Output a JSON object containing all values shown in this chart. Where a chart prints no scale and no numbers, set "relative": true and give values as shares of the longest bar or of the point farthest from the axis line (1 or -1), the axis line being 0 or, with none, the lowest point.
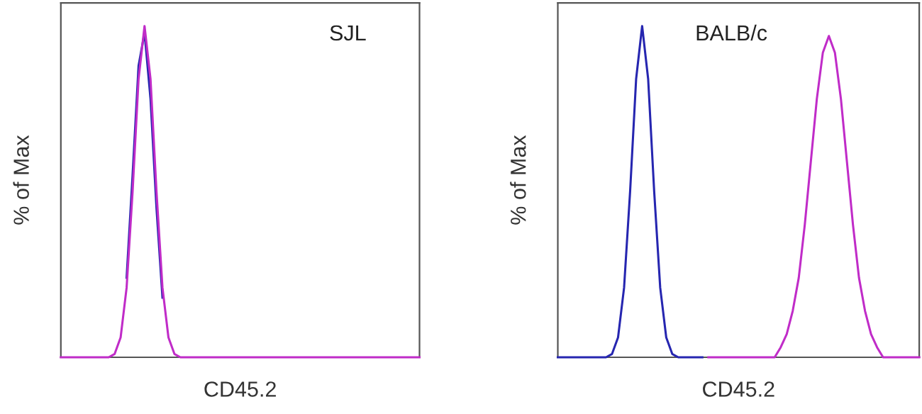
{
  "chart_data": [
    {
      "type": "line",
      "relative": true,
      "ylabel": "% of Max",
      "xlabel": "CD45.2",
      "annotations": [
        "SJL"
      ],
      "tick_labels": false,
      "line_style": "solid",
      "categories": [
        null,
        null,
        null,
        null,
        null,
        null,
        null,
        null,
        null,
        null,
        null,
        null,
        null,
        null,
        null,
        null,
        null,
        null,
        null,
        null,
        null,
        null,
        null,
        null,
        null,
        null,
        null,
        null,
        null,
        null,
        null,
        null,
        null,
        null,
        null,
        null,
        null,
        null,
        null,
        null,
        null,
        null,
        null,
        null,
        null,
        null,
        null,
        null,
        null,
        null,
        null,
        null,
        null,
        null,
        null,
        null,
        null,
        null,
        null,
        null,
        null
      ],
      "series": [
        {
          "color": "#2626b0",
          "values": [
            null,
            null,
            null,
            null,
            null,
            null,
            null,
            null,
            null,
            null,
            null,
            0.24,
            0.55,
            0.88,
            0.98,
            0.78,
            0.45,
            0.18,
            null,
            null,
            null,
            null,
            null,
            null,
            null,
            null,
            null,
            null,
            null,
            null,
            null,
            null,
            null,
            null,
            null,
            null,
            null,
            null,
            null,
            null,
            null,
            null,
            null,
            null,
            null,
            null,
            null,
            null,
            null,
            null,
            null,
            null,
            null,
            null,
            null,
            null,
            null,
            null,
            null,
            null,
            null
          ]
        },
        {
          "color": "#c02cc8",
          "values": [
            0,
            0,
            0,
            0,
            0,
            0,
            0,
            0,
            0,
            0.01,
            0.06,
            0.21,
            0.5,
            0.84,
            1,
            0.84,
            0.5,
            0.21,
            0.06,
            0.01,
            0,
            0,
            0,
            0,
            0,
            0,
            0,
            0,
            0,
            0,
            0,
            0,
            0,
            0,
            0,
            0,
            0,
            0,
            0,
            0,
            0,
            0,
            0,
            0,
            0,
            0,
            0,
            0,
            0,
            0,
            0,
            0,
            0,
            0,
            0,
            0,
            0,
            0,
            0,
            0,
            0
          ]
        }
      ]
    },
    {
      "type": "line",
      "relative": true,
      "ylabel": "% of Max",
      "xlabel": "CD45.2",
      "annotations": [
        "BALB/c"
      ],
      "tick_labels": false,
      "line_style": "solid",
      "categories": [
        null,
        null,
        null,
        null,
        null,
        null,
        null,
        null,
        null,
        null,
        null,
        null,
        null,
        null,
        null,
        null,
        null,
        null,
        null,
        null,
        null,
        null,
        null,
        null,
        null,
        null,
        null,
        null,
        null,
        null,
        null,
        null,
        null,
        null,
        null,
        null,
        null,
        null,
        null,
        null,
        null,
        null,
        null,
        null,
        null,
        null,
        null,
        null,
        null,
        null,
        null,
        null,
        null,
        null,
        null,
        null,
        null,
        null,
        null,
        null,
        null
      ],
      "series": [
        {
          "color": "#2626b0",
          "values": [
            0,
            0,
            0,
            0,
            0,
            0,
            0,
            0,
            0,
            0.01,
            0.06,
            0.21,
            0.5,
            0.84,
            1,
            0.84,
            0.5,
            0.21,
            0.06,
            0.01,
            0,
            0,
            0,
            0,
            0,
            null,
            null,
            null,
            null,
            null,
            null,
            null,
            null,
            null,
            null,
            null,
            null,
            null,
            null,
            null,
            null,
            null,
            null,
            null,
            null,
            null,
            null,
            null,
            null,
            null,
            null,
            null,
            null,
            null,
            null,
            null,
            null,
            null,
            null,
            null,
            null
          ]
        },
        {
          "color": "#c02cc8",
          "values": [
            null,
            null,
            null,
            null,
            null,
            null,
            null,
            null,
            null,
            null,
            null,
            null,
            null,
            null,
            null,
            null,
            null,
            null,
            null,
            null,
            null,
            null,
            null,
            null,
            null,
            0,
            0,
            0,
            0,
            0,
            0,
            0,
            0,
            0,
            0,
            0,
            0,
            0.03,
            0.07,
            0.14,
            0.24,
            0.4,
            0.59,
            0.78,
            0.92,
            0.97,
            0.92,
            0.78,
            0.59,
            0.4,
            0.24,
            0.14,
            0.07,
            0.03,
            0,
            0,
            0,
            0,
            0,
            0,
            0
          ]
        }
      ]
    }
  ]
}
